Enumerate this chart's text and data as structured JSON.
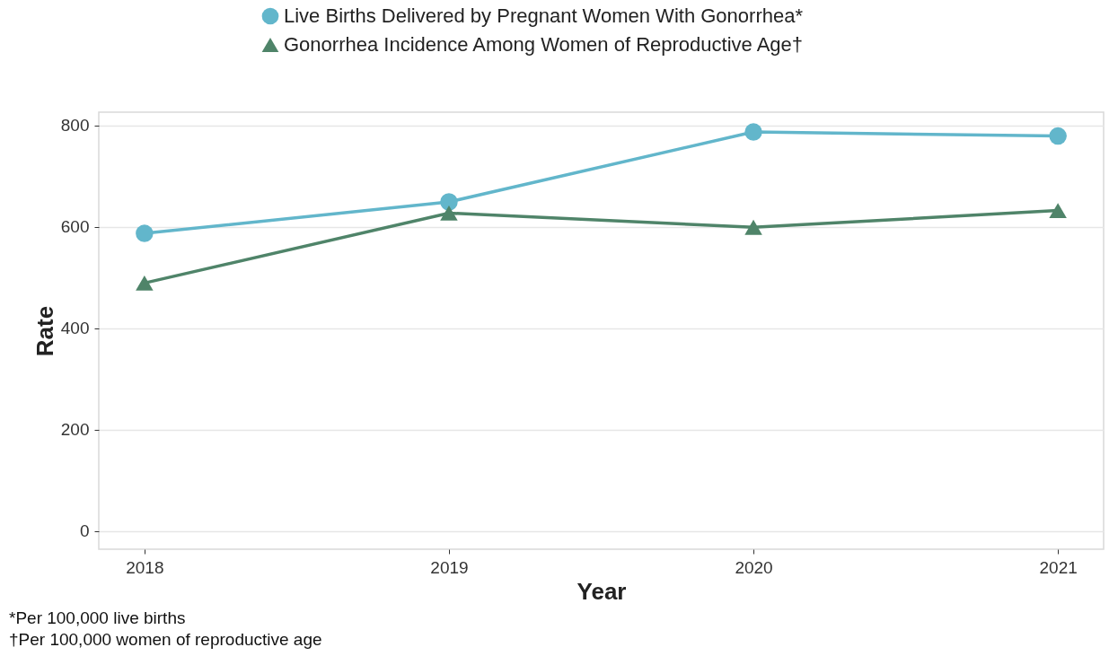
{
  "chart_data": {
    "type": "line",
    "xlabel": "Year",
    "ylabel": "Rate",
    "categories": [
      "2018",
      "2019",
      "2020",
      "2021"
    ],
    "series": [
      {
        "name": "Live Births Delivered by Pregnant Women With Gonorrhea*",
        "color": "#62b6cb",
        "marker": "circle",
        "values": [
          587,
          649,
          787,
          779
        ]
      },
      {
        "name": "Gonorrhea Incidence Among Women of Reproductive Age†",
        "color": "#4f8469",
        "marker": "triangle",
        "values": [
          489,
          627,
          599,
          632
        ]
      }
    ],
    "ylim": [
      -36,
      826
    ],
    "yticks": [
      0,
      200,
      400,
      600,
      800
    ],
    "grid": "y",
    "legend": "top",
    "line_style": "solid",
    "annotations": [
      "*Per 100,000 live births",
      "†Per 100,000 women of reproductive age"
    ]
  }
}
